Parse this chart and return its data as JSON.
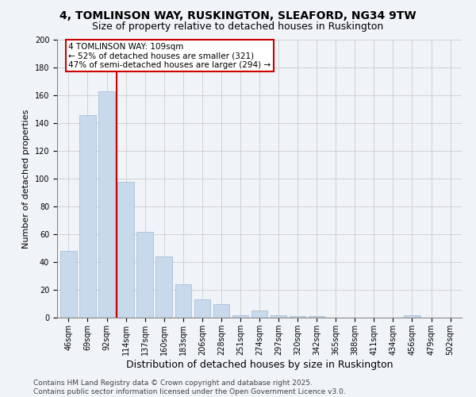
{
  "title1": "4, TOMLINSON WAY, RUSKINGTON, SLEAFORD, NG34 9TW",
  "title2": "Size of property relative to detached houses in Ruskington",
  "xlabel": "Distribution of detached houses by size in Ruskington",
  "ylabel": "Number of detached properties",
  "categories": [
    "46sqm",
    "69sqm",
    "92sqm",
    "114sqm",
    "137sqm",
    "160sqm",
    "183sqm",
    "206sqm",
    "228sqm",
    "251sqm",
    "274sqm",
    "297sqm",
    "320sqm",
    "342sqm",
    "365sqm",
    "388sqm",
    "411sqm",
    "434sqm",
    "456sqm",
    "479sqm",
    "502sqm"
  ],
  "values": [
    48,
    146,
    163,
    98,
    62,
    44,
    24,
    13,
    10,
    2,
    5,
    2,
    1,
    1,
    0,
    0,
    0,
    0,
    2,
    0,
    0
  ],
  "bar_color": "#c8d9eb",
  "bar_edge_color": "#a0b8d0",
  "vline_x_index": 2.5,
  "vline_color": "#cc0000",
  "annotation_text": "4 TOMLINSON WAY: 109sqm\n← 52% of detached houses are smaller (321)\n47% of semi-detached houses are larger (294) →",
  "annotation_box_color": "#ffffff",
  "annotation_box_edge_color": "#cc0000",
  "ylim": [
    0,
    200
  ],
  "yticks": [
    0,
    20,
    40,
    60,
    80,
    100,
    120,
    140,
    160,
    180,
    200
  ],
  "grid_color": "#cccccc",
  "background_color": "#f0f4f8",
  "footer_text": "Contains HM Land Registry data © Crown copyright and database right 2025.\nContains public sector information licensed under the Open Government Licence v3.0.",
  "title1_fontsize": 10,
  "title2_fontsize": 9,
  "xlabel_fontsize": 9,
  "ylabel_fontsize": 8,
  "tick_fontsize": 7,
  "annotation_fontsize": 7.5,
  "footer_fontsize": 6.5
}
